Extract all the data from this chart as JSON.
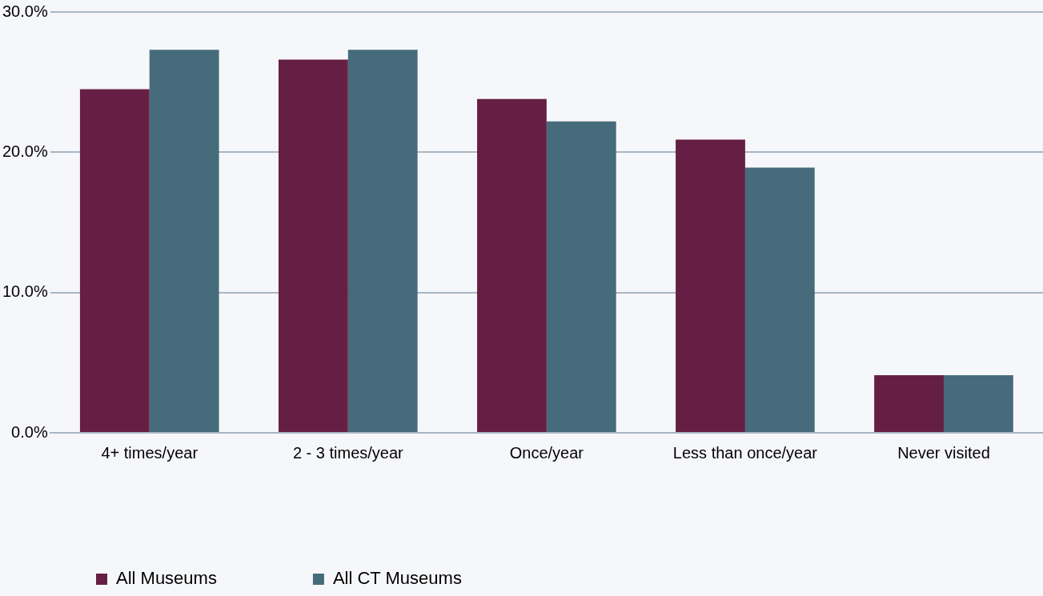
{
  "chart_data": {
    "type": "bar",
    "categories": [
      "4+ times/year",
      "2 - 3 times/year",
      "Once/year",
      "Less than once/year",
      "Never visited"
    ],
    "series": [
      {
        "name": "All Museums",
        "color": "#661f44",
        "values": [
          24.5,
          26.6,
          23.8,
          20.9,
          4.1
        ]
      },
      {
        "name": "All CT Museums",
        "color": "#466b7b",
        "values": [
          27.3,
          27.3,
          22.2,
          18.9,
          4.1
        ]
      }
    ],
    "ylim": [
      0,
      30
    ],
    "yticks": [
      {
        "value": 0,
        "label": "0.0%"
      },
      {
        "value": 10,
        "label": "10.0%"
      },
      {
        "value": 20,
        "label": "20.0%"
      },
      {
        "value": 30,
        "label": "30.0%"
      }
    ],
    "grid": "y",
    "legend": "bottom left"
  }
}
